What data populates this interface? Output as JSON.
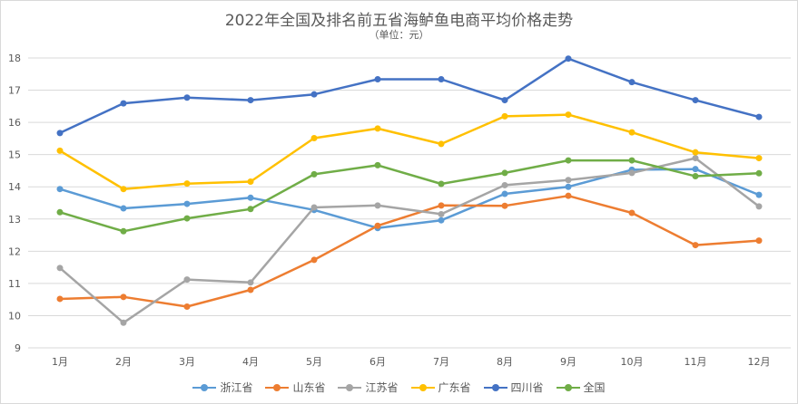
{
  "chart_data": {
    "type": "line",
    "title": "2022年全国及排名前五省海鲈鱼电商平均价格走势",
    "subtitle": "（单位：元）",
    "categories": [
      "1月",
      "2月",
      "3月",
      "4月",
      "5月",
      "6月",
      "7月",
      "8月",
      "9月",
      "10月",
      "11月",
      "12月"
    ],
    "ylim": [
      9,
      18
    ],
    "yticks": [
      9,
      10,
      11,
      12,
      13,
      14,
      15,
      16,
      17,
      18
    ],
    "grid": true,
    "legend_position": "bottom",
    "series": [
      {
        "name": "浙江省",
        "color": "#5b9bd5",
        "values": [
          13.93,
          13.33,
          13.47,
          13.66,
          13.28,
          12.72,
          12.96,
          13.78,
          14.0,
          14.53,
          14.55,
          13.75
        ]
      },
      {
        "name": "山东省",
        "color": "#ed7d31",
        "values": [
          10.52,
          10.58,
          10.28,
          10.8,
          11.73,
          12.79,
          13.42,
          13.41,
          13.72,
          13.19,
          12.19,
          12.33
        ]
      },
      {
        "name": "江苏省",
        "color": "#a5a5a5",
        "values": [
          11.48,
          9.78,
          11.12,
          11.03,
          13.36,
          13.42,
          13.15,
          14.05,
          14.21,
          14.43,
          14.89,
          13.39
        ]
      },
      {
        "name": "广东省",
        "color": "#ffc000",
        "values": [
          15.12,
          13.93,
          14.1,
          14.16,
          15.51,
          15.81,
          15.33,
          16.19,
          16.24,
          15.69,
          15.07,
          14.89
        ]
      },
      {
        "name": "四川省",
        "color": "#4472c4",
        "values": [
          15.67,
          16.59,
          16.77,
          16.69,
          16.87,
          17.34,
          17.34,
          16.69,
          17.98,
          17.25,
          16.69,
          16.17
        ]
      },
      {
        "name": "全国",
        "color": "#70ad47",
        "values": [
          13.21,
          12.62,
          13.02,
          13.31,
          14.39,
          14.67,
          14.09,
          14.43,
          14.82,
          14.82,
          14.33,
          14.42
        ]
      }
    ]
  }
}
